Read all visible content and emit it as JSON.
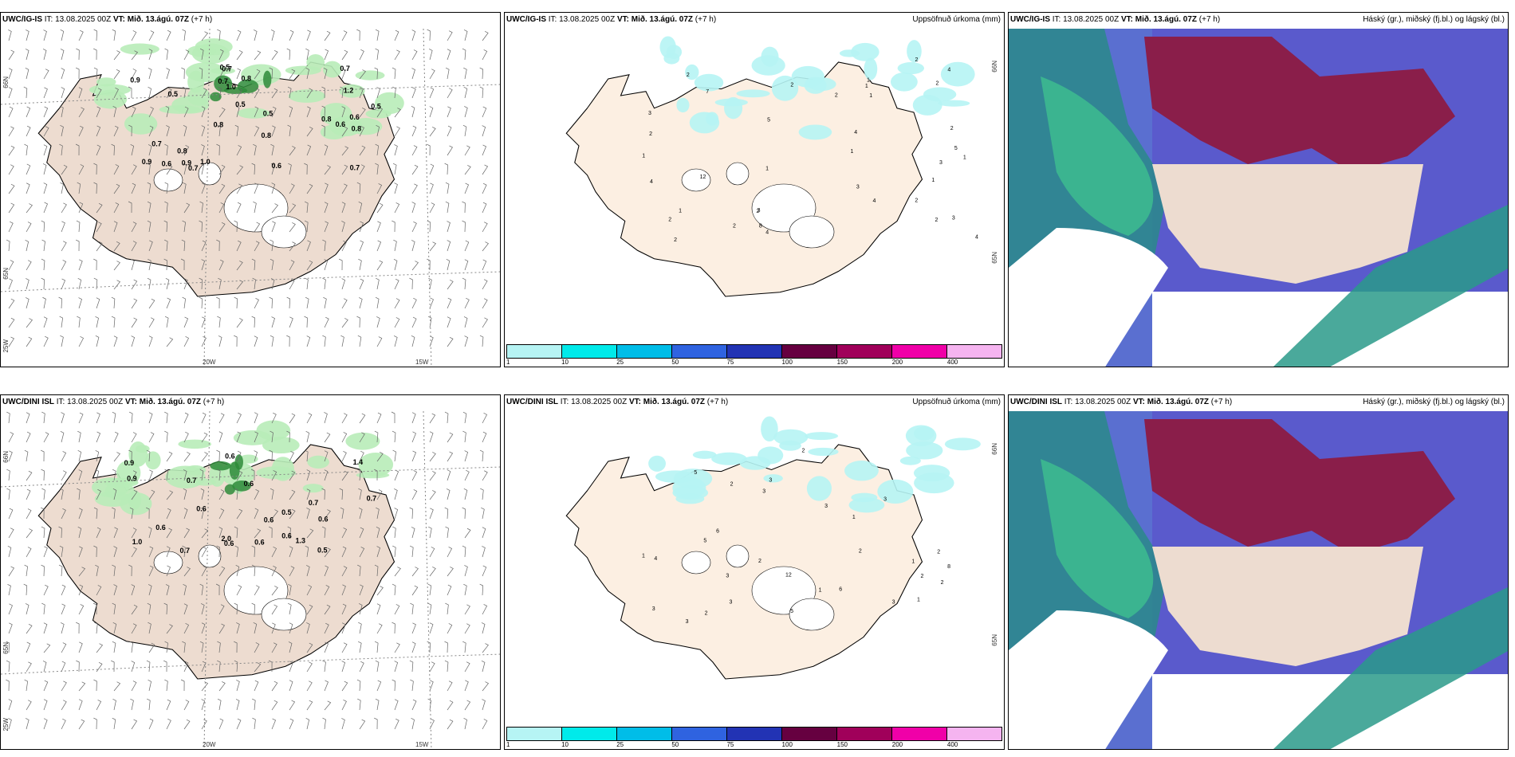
{
  "panels": {
    "a1": {
      "model": "UWC/IG-IS",
      "it": "IT: 13.08.2025 00Z",
      "vt": "VT: Mið. 13.ágú. 07Z",
      "lead": "(+7 h)"
    },
    "a2": {
      "model": "UWC/IG-IS",
      "it": "IT: 13.08.2025 00Z",
      "vt": "VT: Mið. 13.ágú. 07Z",
      "lead": "(+7 h)",
      "right": "Uppsöfnuð úrkoma (mm)"
    },
    "a3": {
      "model": "UWC/IG-IS",
      "it": "IT: 13.08.2025 00Z",
      "vt": "VT: Mið. 13.ágú. 07Z",
      "lead": "(+7 h)",
      "right": "Háský (gr.), miðský (fj.bl.) og lágský (bl.)"
    },
    "b1": {
      "model": "UWC/DINI ISL",
      "it": "IT: 13.08.2025 00Z",
      "vt": "VT: Mið. 13.ágú. 07Z",
      "lead": "(+7 h)"
    },
    "b2": {
      "model": "UWC/DINI ISL",
      "it": "IT: 13.08.2025 00Z",
      "vt": "VT: Mið. 13.ágú. 07Z",
      "lead": "(+7 h)",
      "right": "Uppsöfnuð úrkoma (mm)"
    },
    "b3": {
      "model": "UWC/DINI ISL",
      "it": "IT: 13.08.2025 00Z",
      "vt": "VT: Mið. 13.ágú. 07Z",
      "lead": "(+7 h)",
      "right": "Háský (gr.), miðský (fj.bl.) og lágský (bl.)"
    }
  },
  "axis_labels": {
    "lat66": "66N",
    "lat65": "65N",
    "lon25": "25W",
    "lon20": "20W",
    "lon15": "15W"
  },
  "legend": {
    "colors": [
      "#b6f4f4",
      "#00eaea",
      "#00bde8",
      "#2f63e0",
      "#2233b4",
      "#660040",
      "#a0005a",
      "#f000a8",
      "#f5b4f0"
    ],
    "ticks": [
      "1",
      "10",
      "25",
      "50",
      "75",
      "100",
      "150",
      "200",
      "400"
    ]
  },
  "labels_a1": [
    "0.6",
    "0.6",
    "0.9",
    "0.8",
    "1.0",
    "0.7",
    "0.6",
    "0.8",
    "0.8",
    "0.8",
    "0.9",
    "0.7",
    "0.5",
    "0.8",
    "0.7",
    "0.5",
    "0.6",
    "0.5",
    "0.7",
    "0.5",
    "0.7",
    "0.8",
    "1.0",
    "0.5",
    "0.9",
    "1.2",
    "0.7"
  ],
  "labels_a2": [
    "2",
    "3",
    "3",
    "1",
    "2",
    "5",
    "5",
    "4",
    "7",
    "4",
    "8",
    "4",
    "4",
    "2",
    "1",
    "1",
    "3",
    "2",
    "4",
    "2",
    "3",
    "3",
    "1",
    "2",
    "2",
    "12",
    "2",
    "2",
    "1",
    "1",
    "2",
    "2",
    "2",
    "1",
    "1",
    "2",
    "4",
    "1"
  ],
  "labels_b1": [
    "0.6",
    "0.7",
    "0.6",
    "0.6",
    "0.7",
    "0.7",
    "0.6",
    "0.5",
    "1.4",
    "2.0",
    "0.9",
    "0.6",
    "0.5",
    "0.9",
    "0.7",
    "0.6",
    "0.6",
    "1.0",
    "0.6",
    "1.3",
    "0.6"
  ],
  "labels_b2": [
    "1",
    "2",
    "3",
    "2",
    "2",
    "2",
    "3",
    "5",
    "5",
    "3",
    "6",
    "3",
    "3",
    "12",
    "8",
    "6",
    "4",
    "5",
    "3",
    "3",
    "2",
    "1",
    "2",
    "2",
    "1",
    "1",
    "2",
    "3",
    "1",
    "3"
  ]
}
